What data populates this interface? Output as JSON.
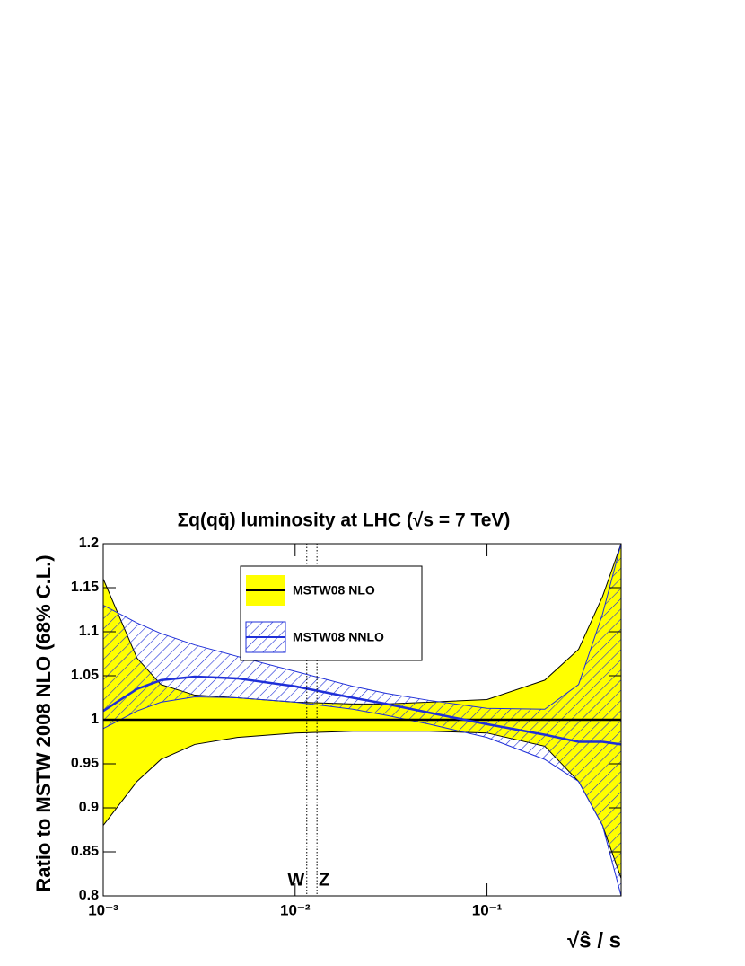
{
  "chart_data": {
    "type": "band-line",
    "title": "Σq(qq̄) luminosity at LHC (√s = 7 TeV)",
    "x_label": "√ŝ / s",
    "y_label": "Ratio to MSTW 2008 NLO (68% C.L.)",
    "x_log": true,
    "legend": "top-center",
    "x": [
      0.001,
      0.0015,
      0.002,
      0.003,
      0.005,
      0.01,
      0.02,
      0.03,
      0.05,
      0.1,
      0.2,
      0.3,
      0.4,
      0.5
    ],
    "series": [
      {
        "name": "MSTW08 NLO",
        "color": "#000000",
        "band_color": "#ffff00",
        "band_style": "solid",
        "values": [
          1,
          1,
          1,
          1,
          1,
          1,
          1,
          1,
          1,
          1,
          1,
          1,
          1,
          1
        ],
        "upper": [
          1.16,
          1.07,
          1.04,
          1.028,
          1.025,
          1.02,
          1.018,
          1.018,
          1.02,
          1.023,
          1.045,
          1.08,
          1.14,
          1.2
        ],
        "lower": [
          0.88,
          0.93,
          0.955,
          0.972,
          0.98,
          0.985,
          0.987,
          0.987,
          0.987,
          0.985,
          0.97,
          0.93,
          0.88,
          0.82
        ]
      },
      {
        "name": "MSTW08 NNLO",
        "color": "#1f2fd8",
        "band_color": "#1f2fd8",
        "band_style": "hatch",
        "values": [
          1.01,
          1.035,
          1.045,
          1.049,
          1.047,
          1.038,
          1.025,
          1.018,
          1.008,
          0.995,
          0.983,
          0.975,
          0.975,
          0.972
        ],
        "upper": [
          1.13,
          1.11,
          1.098,
          1.085,
          1.072,
          1.055,
          1.038,
          1.03,
          1.022,
          1.013,
          1.012,
          1.04,
          1.12,
          1.2
        ],
        "lower": [
          0.99,
          1.01,
          1.02,
          1.026,
          1.025,
          1.02,
          1.012,
          1.005,
          0.995,
          0.98,
          0.955,
          0.93,
          0.88,
          0.8
        ]
      }
    ],
    "xlim": [
      0.001,
      0.5
    ],
    "ylim": [
      0.8,
      1.2
    ],
    "xticks": [
      {
        "value": 0.001,
        "label": "10⁻³"
      },
      {
        "value": 0.01,
        "label": "10⁻²"
      },
      {
        "value": 0.1,
        "label": "10⁻¹"
      }
    ],
    "yticks": [
      0.8,
      0.85,
      0.9,
      0.95,
      1,
      1.05,
      1.1,
      1.15,
      1.2
    ],
    "annotations": [
      {
        "label": "W",
        "x": 0.0115
      },
      {
        "label": "Z",
        "x": 0.013
      }
    ]
  }
}
